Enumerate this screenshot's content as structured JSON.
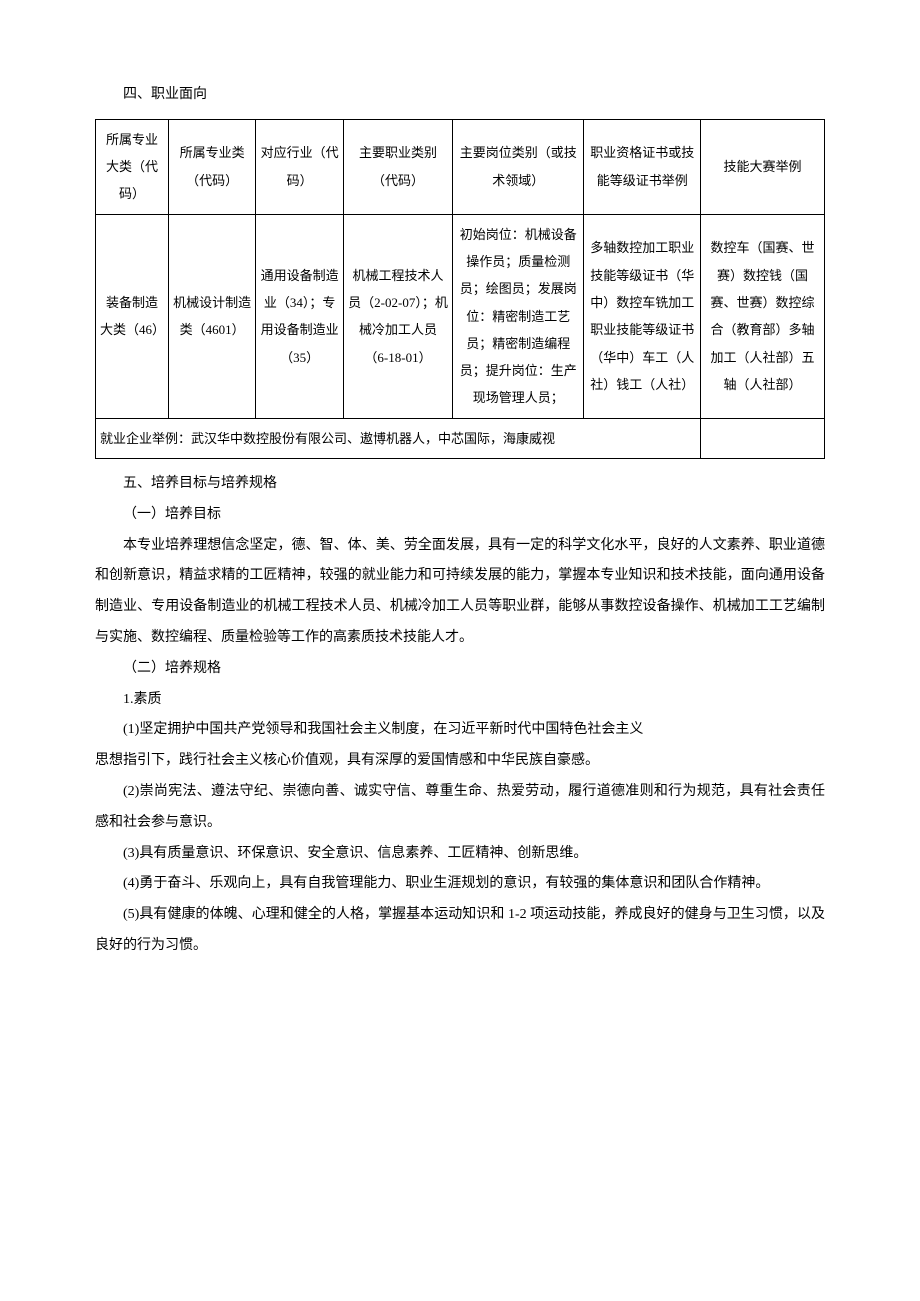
{
  "section4": {
    "heading": "四、职业面向"
  },
  "table": {
    "headers": {
      "col1": "所属专业大类（代码）",
      "col2": "所属专业类（代码）",
      "col3": "对应行业（代码）",
      "col4": "主要职业类别（代码）",
      "col5": "主要岗位类别（或技术领域）",
      "col6": "职业资格证书或技能等级证书举例",
      "col7": "技能大赛举例"
    },
    "data_row": {
      "col1": "装备制造大类（46）",
      "col2": "机械设计制造类（4601）",
      "col3": "通用设备制造业（34）；专用设备制造业（35）",
      "col4": "机械工程技术人员（2-02-07）；机械冷加工人员（6-18-01）",
      "col5": "初始岗位：机械设备操作员；质量检测员；绘图员；发展岗位：精密制造工艺员；精密制造编程员；提升岗位：生产现场管理人员；",
      "col6": "多轴数控加工职业技能等级证书（华中）数控车铣加工职业技能等级证书（华中）车工（人社）钱工（人社）",
      "col7": "数控车（国赛、世赛）数控钱（国赛、世赛）数控综合（教育部）多轴加工（人社部）五轴（人社部）"
    },
    "footer": "就业企业举例：武汉华中数控股份有限公司、遨博机器人，中芯国际，海康威视"
  },
  "section5": {
    "heading": "五、培养目标与培养规格",
    "sub1_heading": "（一）培养目标",
    "sub1_body": "本专业培养理想信念坚定，德、智、体、美、劳全面发展，具有一定的科学文化水平，良好的人文素养、职业道德和创新意识，精益求精的工匠精神，较强的就业能力和可持续发展的能力，掌握本专业知识和技术技能，面向通用设备制造业、专用设备制造业的机械工程技术人员、机械冷加工人员等职业群，能够从事数控设备操作、机械加工工艺编制与实施、数控编程、质量检验等工作的高素质技术技能人才。",
    "sub2_heading": "（二）培养规格",
    "quality_heading": "1.素质",
    "items": {
      "item1_line1": "(1)坚定拥护中国共产党领导和我国社会主义制度，在习近平新时代中国特色社会主义",
      "item1_line2": "思想指引下，践行社会主义核心价值观，具有深厚的爱国情感和中华民族自豪感。",
      "item2": "(2)崇尚宪法、遵法守纪、崇德向善、诚实守信、尊重生命、热爱劳动，履行道德准则和行为规范，具有社会责任感和社会参与意识。",
      "item3": "(3)具有质量意识、环保意识、安全意识、信息素养、工匠精神、创新思维。",
      "item4": "(4)勇于奋斗、乐观向上，具有自我管理能力、职业生涯规划的意识，有较强的集体意识和团队合作精神。",
      "item5": "(5)具有健康的体魄、心理和健全的人格，掌握基本运动知识和 1-2 项运动技能，养成良好的健身与卫生习惯，以及良好的行为习惯。"
    }
  }
}
